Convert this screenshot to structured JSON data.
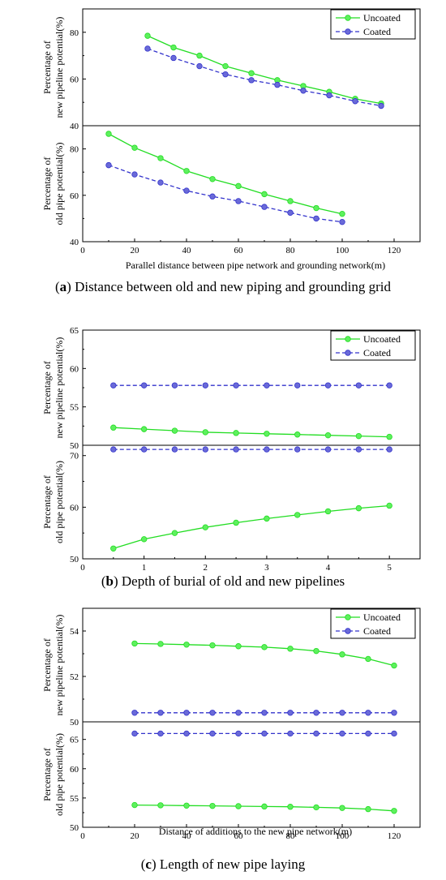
{
  "colors": {
    "uncoated": "#22dd22",
    "coated": "#3333cc",
    "marker_uncoated": "#5ef05e",
    "marker_coated": "#6a6ad8"
  },
  "legend": {
    "uncoated": "Uncoated",
    "coated": "Coated"
  },
  "chart_data": [
    {
      "panel": "a",
      "caption_letter": "a",
      "caption_text": " Distance between old and new piping and grounding grid",
      "xlabel": "Parallel distance between pipe network and grounding network(m)",
      "xlim": [
        0,
        130
      ],
      "xticks": [
        0,
        20,
        40,
        60,
        80,
        100,
        120
      ],
      "subplots": [
        {
          "type": "line",
          "ylabel": [
            "Percentage of",
            "new pipeline potential(%)"
          ],
          "ylim": [
            40,
            90
          ],
          "yticks": [
            40,
            60,
            80
          ],
          "series": [
            {
              "name": "Uncoated",
              "x": [
                25,
                35,
                45,
                55,
                65,
                75,
                85,
                95,
                105,
                115
              ],
              "y": [
                78.5,
                73.5,
                70,
                65.5,
                62.5,
                59.5,
                57,
                54.5,
                51.5,
                49.5
              ]
            },
            {
              "name": "Coated",
              "x": [
                25,
                35,
                45,
                55,
                65,
                75,
                85,
                95,
                105,
                115
              ],
              "y": [
                73,
                69,
                65.5,
                62,
                59.5,
                57.5,
                55,
                53,
                50.5,
                48.5
              ]
            }
          ]
        },
        {
          "type": "line",
          "ylabel": [
            "Percentage of",
            "old pipe potential(%)"
          ],
          "ylim": [
            40,
            90
          ],
          "yticks": [
            40,
            60,
            80
          ],
          "series": [
            {
              "name": "Uncoated",
              "x": [
                10,
                20,
                30,
                40,
                50,
                60,
                70,
                80,
                90,
                100
              ],
              "y": [
                86.5,
                80.5,
                76,
                70.5,
                67,
                64,
                60.5,
                57.5,
                54.5,
                52
              ]
            },
            {
              "name": "Coated",
              "x": [
                10,
                20,
                30,
                40,
                50,
                60,
                70,
                80,
                90,
                100
              ],
              "y": [
                73,
                69,
                65.5,
                62,
                59.5,
                57.5,
                55,
                52.5,
                50,
                48.5
              ]
            }
          ]
        }
      ]
    },
    {
      "panel": "b",
      "caption_letter": "b",
      "caption_text": " Depth of burial of old and new pipelines",
      "xlabel": "",
      "xlim": [
        0,
        5.5
      ],
      "xticks": [
        0,
        1,
        2,
        3,
        4,
        5
      ],
      "subplots": [
        {
          "type": "line",
          "ylabel": [
            "Percentage of",
            "new pipeline potential(%)"
          ],
          "ylim": [
            50,
            65
          ],
          "yticks": [
            50,
            55,
            60,
            65
          ],
          "series": [
            {
              "name": "Uncoated",
              "x": [
                0.5,
                1,
                1.5,
                2,
                2.5,
                3,
                3.5,
                4,
                4.5,
                5
              ],
              "y": [
                52.3,
                52.1,
                51.9,
                51.7,
                51.6,
                51.5,
                51.4,
                51.3,
                51.2,
                51.1
              ]
            },
            {
              "name": "Coated",
              "x": [
                0.5,
                1,
                1.5,
                2,
                2.5,
                3,
                3.5,
                4,
                4.5,
                5
              ],
              "y": [
                57.8,
                57.8,
                57.8,
                57.8,
                57.8,
                57.8,
                57.8,
                57.8,
                57.8,
                57.8
              ]
            }
          ]
        },
        {
          "type": "line",
          "ylabel": [
            "Percentage of",
            "old pipe potential(%)"
          ],
          "ylim": [
            50,
            72
          ],
          "yticks": [
            50,
            60,
            70
          ],
          "series": [
            {
              "name": "Uncoated",
              "x": [
                0.5,
                1,
                1.5,
                2,
                2.5,
                3,
                3.5,
                4,
                4.5,
                5
              ],
              "y": [
                52,
                53.8,
                55,
                56.1,
                57,
                57.8,
                58.5,
                59.2,
                59.8,
                60.3
              ]
            },
            {
              "name": "Coated",
              "x": [
                0.5,
                1,
                1.5,
                2,
                2.5,
                3,
                3.5,
                4,
                4.5,
                5
              ],
              "y": [
                71.2,
                71.2,
                71.2,
                71.2,
                71.2,
                71.2,
                71.2,
                71.2,
                71.2,
                71.2
              ]
            }
          ]
        }
      ]
    },
    {
      "panel": "c",
      "caption_letter": "c",
      "caption_text": " Length of new pipe laying",
      "xlabel": "Distance of additions to the new pipe network(m)",
      "xlim": [
        0,
        130
      ],
      "xticks": [
        0,
        20,
        40,
        60,
        80,
        100,
        120
      ],
      "subplots": [
        {
          "type": "line",
          "ylabel": [
            "Percentage of",
            "new pipeline potential(%)"
          ],
          "ylim": [
            50,
            55
          ],
          "yticks": [
            50,
            52,
            54
          ],
          "series": [
            {
              "name": "Uncoated",
              "x": [
                20,
                30,
                40,
                50,
                60,
                70,
                80,
                90,
                100,
                110,
                120
              ],
              "y": [
                53.45,
                53.43,
                53.4,
                53.37,
                53.33,
                53.29,
                53.22,
                53.12,
                52.97,
                52.77,
                52.48
              ]
            },
            {
              "name": "Coated",
              "x": [
                20,
                30,
                40,
                50,
                60,
                70,
                80,
                90,
                100,
                110,
                120
              ],
              "y": [
                50.4,
                50.4,
                50.4,
                50.4,
                50.4,
                50.4,
                50.4,
                50.4,
                50.4,
                50.4,
                50.4
              ]
            }
          ]
        },
        {
          "type": "line",
          "ylabel": [
            "Percentage of",
            "old pipe potential(%)"
          ],
          "ylim": [
            50,
            68
          ],
          "yticks": [
            50,
            55,
            60,
            65
          ],
          "series": [
            {
              "name": "Uncoated",
              "x": [
                20,
                30,
                40,
                50,
                60,
                70,
                80,
                90,
                100,
                110,
                120
              ],
              "y": [
                53.8,
                53.75,
                53.7,
                53.65,
                53.6,
                53.55,
                53.5,
                53.4,
                53.3,
                53.1,
                52.8
              ]
            },
            {
              "name": "Coated",
              "x": [
                20,
                30,
                40,
                50,
                60,
                70,
                80,
                90,
                100,
                110,
                120
              ],
              "y": [
                66,
                66,
                66,
                66,
                66,
                66,
                66,
                66,
                66,
                66,
                66
              ]
            }
          ]
        }
      ]
    }
  ]
}
